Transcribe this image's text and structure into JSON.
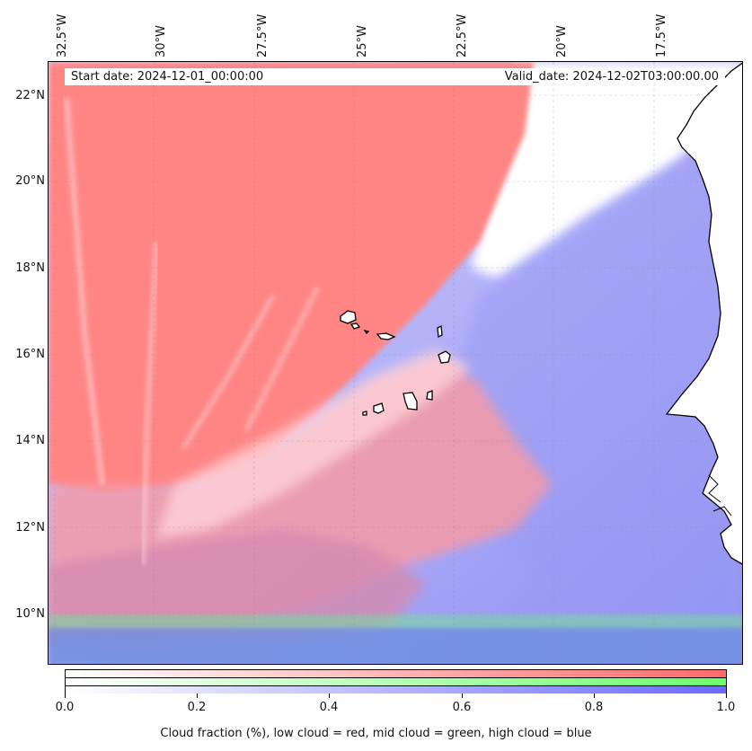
{
  "map": {
    "start_date": "Start date: 2024-12-01_00:00:00",
    "valid_date": "Valid_date: 2024-12-02T03:00:00.00",
    "longitude_labels": [
      "32.5°W",
      "30°W",
      "27.5°W",
      "25°W",
      "22.5°W",
      "20°W",
      "17.5°W"
    ],
    "latitude_labels": [
      "22°N",
      "20°N",
      "18°N",
      "16°N",
      "14°N",
      "12°N",
      "10°N"
    ],
    "extent": {
      "west_lon": -32.5,
      "east_lon": -15.8,
      "south_lat": 8.9,
      "north_lat": 22.7
    },
    "layers": [
      {
        "name": "low cloud",
        "color": "#ff8080"
      },
      {
        "name": "mid cloud",
        "color": "#80ff80"
      },
      {
        "name": "high cloud",
        "color": "#8080ff"
      }
    ],
    "coastline_color": "#000000",
    "gridlines": true
  },
  "colorbar": {
    "ticks": [
      "0.0",
      "0.2",
      "0.4",
      "0.6",
      "0.8",
      "1.0"
    ],
    "title": "Cloud fraction (%), low cloud = red, mid cloud = green, high cloud = blue",
    "rows": [
      {
        "name": "low",
        "color": "#ff7070"
      },
      {
        "name": "mid",
        "color": "#70ff70"
      },
      {
        "name": "high",
        "color": "#7070ff"
      }
    ]
  }
}
